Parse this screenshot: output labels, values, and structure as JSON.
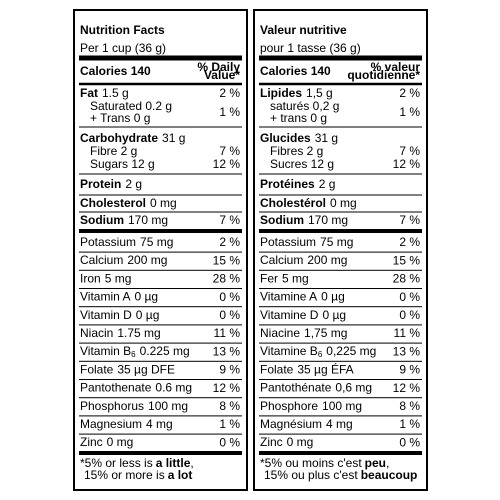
{
  "panels": [
    {
      "title": "Nutrition Facts",
      "serving": "Per 1 cup (36 g)",
      "calories": "Calories 140",
      "dv_header": [
        "% Daily",
        "Value*"
      ],
      "fat": {
        "name": "Fat",
        "amount": "1.5 g",
        "dv": "2 %"
      },
      "fat_sub": {
        "lines": [
          "Saturated 0.2 g",
          "+ Trans 0 g"
        ],
        "dv": "1 %"
      },
      "carbohydrate": {
        "name": "Carbohydrate",
        "amount": "31 g"
      },
      "carb_sub": [
        {
          "text": "Fibre 2 g",
          "dv": "7 %"
        },
        {
          "text": "Sugars 12 g",
          "dv": "12 %"
        }
      ],
      "protein": {
        "name": "Protein",
        "amount": "2 g"
      },
      "cholesterol": {
        "name": "Cholesterol",
        "amount": "0 mg"
      },
      "sodium": {
        "name": "Sodium",
        "amount": "170 mg",
        "dv": "7 %"
      },
      "micronutrients": [
        {
          "name": "Potassium",
          "amount": "75 mg",
          "dv": "2 %"
        },
        {
          "name": "Calcium",
          "amount": "200 mg",
          "dv": "15 %"
        },
        {
          "name": "Iron",
          "amount": "5 mg",
          "dv": "28 %"
        },
        {
          "name": "Vitamin A",
          "amount": "0 µg",
          "dv": "0 %"
        },
        {
          "name": "Vitamin D",
          "amount": "0 µg",
          "dv": "0 %"
        },
        {
          "name": "Niacin",
          "amount": "1.75 mg",
          "dv": "11 %"
        },
        {
          "name": "Vitamin B",
          "sub": "6",
          "amount": "0.225 mg",
          "dv": "13 %"
        },
        {
          "name": "Folate",
          "amount": "35 µg DFE",
          "dv": "9 %"
        },
        {
          "name": "Pantothenate",
          "amount": "0.6 mg",
          "dv": "12 %"
        },
        {
          "name": "Phosphorus",
          "amount": "100 mg",
          "dv": "8 %"
        },
        {
          "name": "Magnesium",
          "amount": "4 mg",
          "dv": "1 %"
        },
        {
          "name": "Zinc",
          "amount": "0 mg",
          "dv": "0 %"
        }
      ],
      "footnote": [
        {
          "before": "*5% or less is",
          "bold": "a little",
          "after": ","
        },
        {
          "before": "15% or more is",
          "bold": "a lot"
        }
      ]
    },
    {
      "title": "Valeur nutritive",
      "serving": "pour 1 tasse (36 g)",
      "calories": "Calories 140",
      "dv_header": [
        "% valeur",
        "quotidienne*"
      ],
      "fat": {
        "name": "Lipides",
        "amount": "1,5 g",
        "dv": "2 %"
      },
      "fat_sub": {
        "lines": [
          "saturés 0,2 g",
          "+ trans 0 g"
        ],
        "dv": "1 %"
      },
      "carbohydrate": {
        "name": "Glucides",
        "amount": "31 g"
      },
      "carb_sub": [
        {
          "text": "Fibres 2 g",
          "dv": "7 %"
        },
        {
          "text": "Sucres 12 g",
          "dv": "12 %"
        }
      ],
      "protein": {
        "name": "Protéines",
        "amount": "2 g"
      },
      "cholesterol": {
        "name": "Cholestérol",
        "amount": "0 mg"
      },
      "sodium": {
        "name": "Sodium",
        "amount": "170 mg",
        "dv": "7 %"
      },
      "micronutrients": [
        {
          "name": "Potassium",
          "amount": "75 mg",
          "dv": "2 %"
        },
        {
          "name": "Calcium",
          "amount": "200 mg",
          "dv": "15 %"
        },
        {
          "name": "Fer",
          "amount": "5 mg",
          "dv": "28 %"
        },
        {
          "name": "Vitamine A",
          "amount": "0 µg",
          "dv": "0 %"
        },
        {
          "name": "Vitamine D",
          "amount": "0 µg",
          "dv": "0 %"
        },
        {
          "name": "Niacine",
          "amount": "1,75 mg",
          "dv": "11 %"
        },
        {
          "name": "Vitamine B",
          "sub": "6",
          "amount": "0,225 mg",
          "dv": "13 %"
        },
        {
          "name": "Folate",
          "amount": "35 µg ÉFA",
          "dv": "9 %"
        },
        {
          "name": "Pantothénate",
          "amount": "0,6 mg",
          "dv": "12 %"
        },
        {
          "name": "Phosphore",
          "amount": "100 mg",
          "dv": "8 %"
        },
        {
          "name": "Magnésium",
          "amount": "4 mg",
          "dv": "1 %"
        },
        {
          "name": "Zinc",
          "amount": "0 mg",
          "dv": "0 %"
        }
      ],
      "footnote": [
        {
          "before": "*5% ou moins c'est",
          "bold": "peu",
          "after": ","
        },
        {
          "before": "15% ou plus c'est",
          "bold": "beaucoup"
        }
      ]
    }
  ]
}
